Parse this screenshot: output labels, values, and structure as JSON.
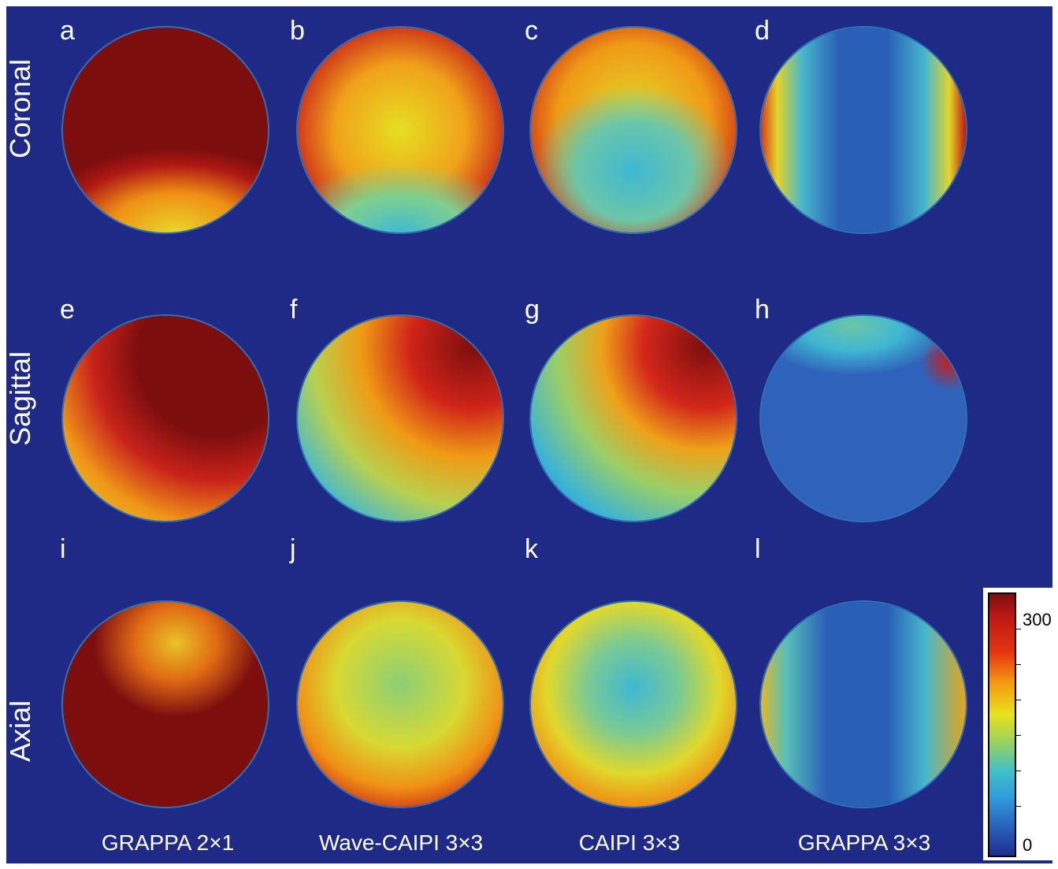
{
  "figure": {
    "panel_letters": [
      "a",
      "b",
      "c",
      "d",
      "e",
      "f",
      "g",
      "h",
      "i",
      "j",
      "k",
      "l"
    ],
    "row_labels": [
      "Coronal",
      "Sagittal",
      "Axial"
    ],
    "column_labels": [
      "GRAPPA 2×1",
      "Wave-CAIPI 3×3",
      "CAIPI 3×3",
      "GRAPPA 3×3"
    ],
    "colorbar": {
      "max_label": "300",
      "min_label": "0"
    }
  },
  "colors": {
    "background": "#1e2a86",
    "dark_red": "#7c0e0e",
    "red": "#d8231a",
    "orange": "#f08a14",
    "yellow": "#e6df22",
    "cyan": "#40bcd0",
    "light_blue": "#2e8ed6",
    "blue": "#2a5fb8"
  }
}
